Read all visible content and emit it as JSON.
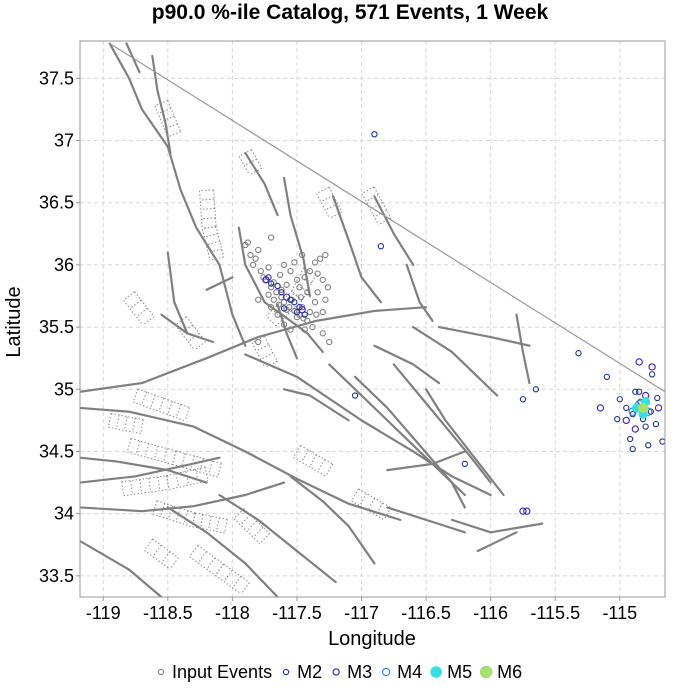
{
  "chart_data": {
    "type": "scatter",
    "title": "p90.0 %-ile Catalog, 571 Events, 1 Week",
    "xlabel": "Longitude",
    "ylabel": "Latitude",
    "xlim": [
      -119.18,
      -114.65
    ],
    "ylim": [
      33.33,
      37.8
    ],
    "x_ticks": [
      -119,
      -118.5,
      -118,
      -117.5,
      -117,
      -116.5,
      -116,
      -115.5,
      -115
    ],
    "y_ticks": [
      33.5,
      34,
      34.5,
      35,
      35.5,
      36,
      36.5,
      37,
      37.5
    ],
    "x_tick_labels": [
      "-119",
      "-118.5",
      "-118",
      "-117.5",
      "-117",
      "-116.5",
      "-116",
      "-115.5",
      "-115"
    ],
    "y_tick_labels": [
      "33.5",
      "34",
      "34.5",
      "35",
      "35.5",
      "36",
      "36.5",
      "37",
      "37.5"
    ],
    "grid": true,
    "legend_position": "bottom",
    "legend": [
      {
        "label": "Input Events",
        "color": "#808080",
        "style": "ring",
        "size": 4
      },
      {
        "label": "M2",
        "color": "#1f2f9f",
        "style": "ring",
        "size": 4
      },
      {
        "label": "M3",
        "color": "#3a1fbf",
        "style": "ring",
        "size": 5
      },
      {
        "label": "M4",
        "color": "#2f7fd0",
        "style": "ring",
        "size": 6
      },
      {
        "label": "M5",
        "color": "#33e0e8",
        "style": "filled",
        "size": 7
      },
      {
        "label": "M6",
        "color": "#a8e070",
        "style": "filled",
        "size": 8
      }
    ],
    "faults": [
      [
        [
          -119.18,
          34.98
        ],
        [
          -118.7,
          35.05
        ],
        [
          -118.2,
          35.25
        ],
        [
          -117.8,
          35.42
        ],
        [
          -117.35,
          35.55
        ],
        [
          -116.9,
          35.63
        ],
        [
          -116.5,
          35.66
        ]
      ],
      [
        [
          -119.18,
          34.85
        ],
        [
          -118.8,
          34.82
        ],
        [
          -118.3,
          34.7
        ],
        [
          -117.9,
          34.5
        ],
        [
          -117.5,
          34.28
        ],
        [
          -117.1,
          34.08
        ],
        [
          -116.7,
          33.95
        ]
      ],
      [
        [
          -118.95,
          37.78
        ],
        [
          -118.8,
          37.5
        ],
        [
          -118.7,
          37.25
        ],
        [
          -118.5,
          36.95
        ],
        [
          -118.4,
          36.6
        ],
        [
          -118.28,
          36.3
        ],
        [
          -118.1,
          36.0
        ],
        [
          -118.0,
          35.6
        ],
        [
          -117.9,
          35.35
        ]
      ],
      [
        [
          -118.62,
          37.68
        ],
        [
          -118.58,
          37.4
        ],
        [
          -118.52,
          37.15
        ],
        [
          -118.48,
          36.9
        ]
      ],
      [
        [
          -118.82,
          37.78
        ],
        [
          -118.72,
          37.55
        ]
      ],
      [
        [
          -118.5,
          36.1
        ],
        [
          -118.45,
          35.7
        ],
        [
          -118.35,
          35.45
        ]
      ],
      [
        [
          -117.95,
          36.3
        ],
        [
          -117.9,
          36.0
        ],
        [
          -117.75,
          35.7
        ],
        [
          -117.55,
          35.55
        ],
        [
          -117.42,
          35.45
        ],
        [
          -117.3,
          35.3
        ]
      ],
      [
        [
          -117.6,
          36.7
        ],
        [
          -117.55,
          36.4
        ],
        [
          -117.45,
          36.05
        ],
        [
          -117.4,
          35.75
        ]
      ],
      [
        [
          -117.22,
          36.55
        ],
        [
          -117.1,
          36.2
        ],
        [
          -117.0,
          35.9
        ],
        [
          -116.85,
          35.7
        ]
      ],
      [
        [
          -117.9,
          36.9
        ],
        [
          -117.75,
          36.65
        ],
        [
          -117.65,
          36.4
        ]
      ],
      [
        [
          -116.9,
          36.55
        ],
        [
          -116.75,
          36.25
        ],
        [
          -116.6,
          36.0
        ]
      ],
      [
        [
          -117.9,
          35.28
        ],
        [
          -117.5,
          35.1
        ],
        [
          -117.0,
          34.75
        ],
        [
          -116.6,
          34.5
        ],
        [
          -116.3,
          34.3
        ],
        [
          -116.0,
          34.15
        ]
      ],
      [
        [
          -117.25,
          35.2
        ],
        [
          -116.95,
          34.9
        ],
        [
          -116.7,
          34.65
        ],
        [
          -116.45,
          34.4
        ],
        [
          -116.2,
          34.15
        ]
      ],
      [
        [
          -117.05,
          35.1
        ],
        [
          -116.8,
          34.85
        ],
        [
          -116.55,
          34.55
        ],
        [
          -116.3,
          34.25
        ],
        [
          -116.2,
          34.05
        ]
      ],
      [
        [
          -116.75,
          35.2
        ],
        [
          -116.55,
          34.95
        ],
        [
          -116.35,
          34.7
        ],
        [
          -116.15,
          34.45
        ],
        [
          -116.0,
          34.25
        ]
      ],
      [
        [
          -116.5,
          35.0
        ],
        [
          -116.35,
          34.75
        ],
        [
          -116.2,
          34.55
        ],
        [
          -116.05,
          34.35
        ],
        [
          -115.9,
          34.15
        ]
      ],
      [
        [
          -116.4,
          35.5
        ],
        [
          -116.0,
          35.42
        ],
        [
          -115.7,
          35.35
        ]
      ],
      [
        [
          -116.6,
          35.5
        ],
        [
          -116.3,
          35.3
        ],
        [
          -116.1,
          35.1
        ],
        [
          -115.95,
          34.95
        ]
      ],
      [
        [
          -116.9,
          35.35
        ],
        [
          -116.6,
          35.2
        ],
        [
          -116.4,
          35.05
        ]
      ],
      [
        [
          -115.8,
          35.6
        ],
        [
          -115.75,
          35.3
        ],
        [
          -115.7,
          35.05
        ]
      ],
      [
        [
          -118.0,
          35.9
        ],
        [
          -118.2,
          35.8
        ]
      ],
      [
        [
          -118.55,
          35.6
        ],
        [
          -118.35,
          35.45
        ],
        [
          -118.15,
          35.38
        ]
      ],
      [
        [
          -119.18,
          34.05
        ],
        [
          -118.7,
          34.02
        ],
        [
          -118.3,
          34.06
        ],
        [
          -117.9,
          34.15
        ],
        [
          -117.6,
          34.25
        ]
      ],
      [
        [
          -119.18,
          34.25
        ],
        [
          -118.75,
          34.3
        ],
        [
          -118.4,
          34.38
        ],
        [
          -118.1,
          34.45
        ]
      ],
      [
        [
          -119.18,
          34.45
        ],
        [
          -118.9,
          34.42
        ],
        [
          -118.5,
          34.35
        ],
        [
          -118.2,
          34.25
        ]
      ],
      [
        [
          -119.18,
          33.78
        ],
        [
          -118.8,
          33.55
        ],
        [
          -118.55,
          33.33
        ]
      ],
      [
        [
          -118.5,
          34.05
        ],
        [
          -118.2,
          33.85
        ],
        [
          -117.9,
          33.6
        ],
        [
          -117.65,
          33.33
        ]
      ],
      [
        [
          -118.1,
          34.15
        ],
        [
          -117.8,
          33.95
        ],
        [
          -117.5,
          33.7
        ],
        [
          -117.2,
          33.45
        ]
      ],
      [
        [
          -117.55,
          34.3
        ],
        [
          -117.3,
          34.1
        ],
        [
          -117.1,
          33.9
        ],
        [
          -116.9,
          33.6
        ]
      ],
      [
        [
          -116.8,
          34.05
        ],
        [
          -116.5,
          33.95
        ],
        [
          -116.2,
          33.85
        ]
      ],
      [
        [
          -116.3,
          33.95
        ],
        [
          -116.0,
          33.85
        ],
        [
          -115.6,
          33.92
        ]
      ],
      [
        [
          -116.1,
          33.7
        ],
        [
          -115.8,
          33.85
        ]
      ],
      [
        [
          -116.8,
          34.35
        ],
        [
          -116.45,
          34.4
        ],
        [
          -116.2,
          34.5
        ]
      ],
      [
        [
          -117.6,
          35.0
        ],
        [
          -117.4,
          34.95
        ],
        [
          -117.1,
          34.75
        ]
      ],
      [
        [
          -116.65,
          36.0
        ],
        [
          -116.55,
          35.7
        ],
        [
          -116.45,
          35.55
        ]
      ],
      [
        [
          -117.65,
          35.68
        ],
        [
          -117.58,
          35.45
        ],
        [
          -117.5,
          35.25
        ]
      ]
    ],
    "ruptured_faults": [
      [
        [
          -118.2,
          36.6
        ],
        [
          -118.18,
          36.3
        ],
        [
          -118.12,
          36.05
        ]
      ],
      [
        [
          -117.4,
          35.95
        ],
        [
          -117.5,
          35.75
        ],
        [
          -117.7,
          35.55
        ]
      ],
      [
        [
          -117.8,
          35.4
        ],
        [
          -117.7,
          35.2
        ]
      ],
      [
        [
          -118.4,
          35.55
        ],
        [
          -118.25,
          35.35
        ]
      ],
      [
        [
          -118.75,
          34.95
        ],
        [
          -118.35,
          34.8
        ]
      ],
      [
        [
          -118.8,
          34.55
        ],
        [
          -118.45,
          34.45
        ],
        [
          -118.1,
          34.35
        ]
      ],
      [
        [
          -118.85,
          34.2
        ],
        [
          -118.5,
          34.25
        ],
        [
          -118.2,
          34.32
        ]
      ],
      [
        [
          -118.6,
          34.05
        ],
        [
          -118.3,
          33.95
        ],
        [
          -118.05,
          33.9
        ]
      ],
      [
        [
          -118.3,
          33.7
        ],
        [
          -118.1,
          33.55
        ],
        [
          -117.9,
          33.4
        ]
      ],
      [
        [
          -117.95,
          34.0
        ],
        [
          -117.75,
          33.8
        ]
      ],
      [
        [
          -117.5,
          34.5
        ],
        [
          -117.25,
          34.35
        ]
      ],
      [
        [
          -118.55,
          37.3
        ],
        [
          -118.45,
          37.05
        ]
      ],
      [
        [
          -117.9,
          36.9
        ],
        [
          -117.82,
          36.75
        ]
      ],
      [
        [
          -117.3,
          36.6
        ],
        [
          -117.2,
          36.4
        ]
      ],
      [
        [
          -118.8,
          35.75
        ],
        [
          -118.65,
          35.55
        ]
      ],
      [
        [
          -116.95,
          36.6
        ],
        [
          -116.82,
          36.35
        ]
      ],
      [
        [
          -118.95,
          34.75
        ],
        [
          -118.7,
          34.7
        ]
      ],
      [
        [
          -117.05,
          34.15
        ],
        [
          -116.8,
          34.0
        ]
      ],
      [
        [
          -118.65,
          33.75
        ],
        [
          -118.45,
          33.6
        ]
      ]
    ],
    "boundary": [
      [
        -118.95,
        37.78
      ],
      [
        -114.65,
        34.98
      ]
    ],
    "input_events": [
      [
        -117.8,
        36.12
      ],
      [
        -117.82,
        36.05
      ],
      [
        -117.78,
        35.95
      ],
      [
        -117.74,
        35.88
      ],
      [
        -117.7,
        35.82
      ],
      [
        -117.66,
        35.78
      ],
      [
        -117.62,
        35.74
      ],
      [
        -117.6,
        35.7
      ],
      [
        -117.56,
        35.66
      ],
      [
        -117.52,
        35.63
      ],
      [
        -117.48,
        35.6
      ],
      [
        -117.45,
        35.57
      ],
      [
        -117.72,
        35.76
      ],
      [
        -117.68,
        35.72
      ],
      [
        -117.64,
        35.68
      ],
      [
        -117.58,
        35.64
      ],
      [
        -117.5,
        35.58
      ],
      [
        -117.42,
        35.55
      ],
      [
        -117.76,
        35.9
      ],
      [
        -117.68,
        35.86
      ],
      [
        -117.62,
        35.8
      ],
      [
        -117.54,
        35.72
      ],
      [
        -117.46,
        35.66
      ],
      [
        -117.4,
        35.62
      ],
      [
        -117.35,
        35.6
      ],
      [
        -117.3,
        35.62
      ],
      [
        -117.4,
        35.95
      ],
      [
        -117.36,
        36.02
      ],
      [
        -117.32,
        36.05
      ],
      [
        -117.44,
        35.9
      ],
      [
        -117.5,
        35.88
      ],
      [
        -117.55,
        35.95
      ],
      [
        -117.6,
        36.0
      ],
      [
        -117.3,
        35.88
      ],
      [
        -117.26,
        35.82
      ],
      [
        -117.34,
        35.78
      ],
      [
        -117.28,
        35.72
      ],
      [
        -117.36,
        35.7
      ],
      [
        -117.42,
        35.78
      ],
      [
        -117.48,
        35.82
      ],
      [
        -117.58,
        35.84
      ],
      [
        -117.52,
        36.02
      ],
      [
        -117.46,
        36.08
      ],
      [
        -117.88,
        36.18
      ],
      [
        -117.86,
        36.08
      ],
      [
        -117.84,
        36.0
      ],
      [
        -117.3,
        35.45
      ],
      [
        -117.25,
        35.38
      ],
      [
        -117.65,
        35.6
      ],
      [
        -117.7,
        35.66
      ],
      [
        -117.8,
        35.72
      ],
      [
        -117.38,
        35.5
      ],
      [
        -117.44,
        35.48
      ],
      [
        -117.6,
        35.52
      ],
      [
        -117.55,
        35.48
      ],
      [
        -117.8,
        35.38
      ],
      [
        -117.9,
        36.16
      ],
      [
        -117.7,
        36.22
      ],
      [
        -117.28,
        36.08
      ],
      [
        -117.34,
        35.93
      ],
      [
        -117.47,
        35.74
      ],
      [
        -117.63,
        35.92
      ],
      [
        -117.72,
        35.98
      ]
    ],
    "m2_events": [
      [
        -117.72,
        35.9
      ],
      [
        -117.7,
        35.85
      ],
      [
        -117.62,
        35.78
      ],
      [
        -117.55,
        35.72
      ],
      [
        -117.48,
        35.66
      ],
      [
        -117.44,
        35.6
      ],
      [
        -117.6,
        35.65
      ],
      [
        -117.52,
        35.7
      ],
      [
        -117.65,
        35.83
      ],
      [
        -117.5,
        35.62
      ],
      [
        -116.9,
        37.05
      ],
      [
        -116.85,
        36.15
      ],
      [
        -117.05,
        34.95
      ],
      [
        -116.2,
        34.4
      ],
      [
        -115.75,
        34.92
      ],
      [
        -115.65,
        35.0
      ],
      [
        -115.32,
        35.29
      ],
      [
        -115.1,
        35.1
      ],
      [
        -115.0,
        34.92
      ],
      [
        -114.95,
        34.85
      ],
      [
        -114.85,
        34.98
      ],
      [
        -114.75,
        35.12
      ],
      [
        -114.72,
        34.72
      ],
      [
        -114.8,
        34.7
      ],
      [
        -114.9,
        34.8
      ],
      [
        -114.92,
        34.6
      ],
      [
        -114.78,
        34.55
      ],
      [
        -114.67,
        34.58
      ],
      [
        -114.84,
        34.9
      ],
      [
        -114.76,
        34.82
      ],
      [
        -114.88,
        34.98
      ],
      [
        -114.82,
        34.76
      ],
      [
        -114.71,
        34.93
      ],
      [
        -115.02,
        34.76
      ],
      [
        -114.9,
        34.52
      ]
    ],
    "m3_events": [
      [
        -117.74,
        35.88
      ],
      [
        -117.58,
        35.74
      ],
      [
        -117.46,
        35.64
      ],
      [
        -115.75,
        34.02
      ],
      [
        -115.72,
        34.02
      ],
      [
        -114.75,
        35.18
      ],
      [
        -114.85,
        35.22
      ],
      [
        -115.15,
        34.85
      ],
      [
        -114.95,
        34.75
      ],
      [
        -114.8,
        34.95
      ],
      [
        -114.7,
        34.85
      ],
      [
        -114.88,
        34.68
      ]
    ],
    "m4_events": [
      [
        -114.85,
        34.88
      ],
      [
        -114.78,
        34.82
      ],
      [
        -114.9,
        34.82
      ]
    ],
    "m5_events": [
      [
        -114.87,
        34.85
      ],
      [
        -114.8,
        34.9
      ],
      [
        -114.82,
        34.8
      ]
    ],
    "m6_events": [
      [
        -114.82,
        34.85
      ]
    ]
  }
}
